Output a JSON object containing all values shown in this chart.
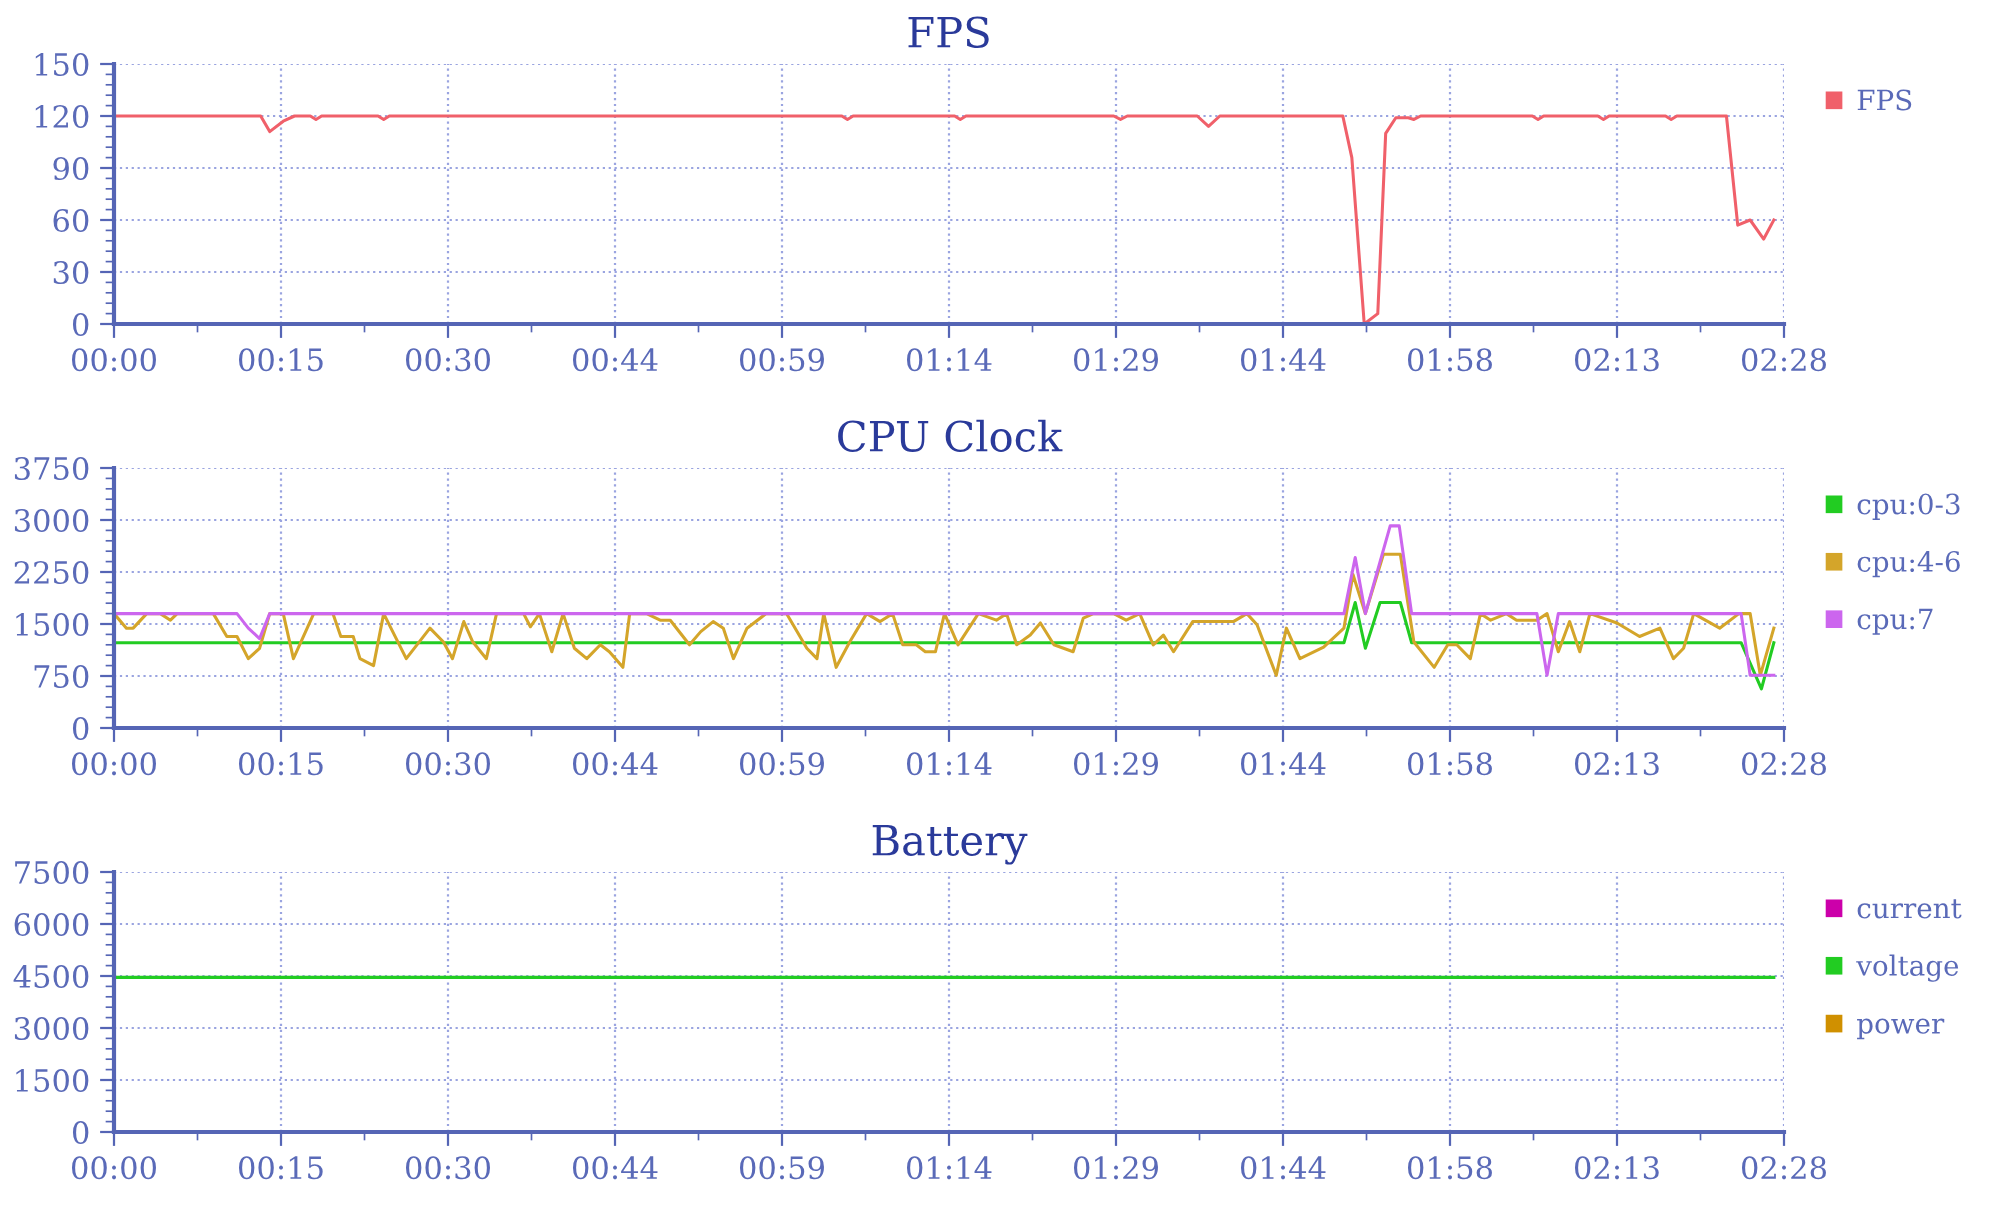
{
  "chart_data": [
    {
      "type": "line",
      "title": "FPS",
      "xlim": [
        0,
        148
      ],
      "xticks": [
        {
          "value": 0,
          "label": "00:00"
        },
        {
          "value": 14.8,
          "label": "00:15"
        },
        {
          "value": 29.6,
          "label": "00:30"
        },
        {
          "value": 44.4,
          "label": "00:44"
        },
        {
          "value": 59.2,
          "label": "00:59"
        },
        {
          "value": 74,
          "label": "01:14"
        },
        {
          "value": 88.8,
          "label": "01:29"
        },
        {
          "value": 103.6,
          "label": "01:44"
        },
        {
          "value": 118.4,
          "label": "01:58"
        },
        {
          "value": 133.2,
          "label": "02:13"
        },
        {
          "value": 148,
          "label": "02:28"
        }
      ],
      "ylim": [
        0,
        150
      ],
      "yticks": [
        0,
        30,
        60,
        90,
        120,
        150
      ],
      "grid": true,
      "legend": "right",
      "marker": "none",
      "line_style": "solid",
      "series": [
        {
          "name": "FPS",
          "color": "#f0606a",
          "x": [
            0,
            13,
            13.8,
            15,
            16,
            17.4,
            17.9,
            18.4,
            23.4,
            23.9,
            24.4,
            64.5,
            65,
            65.5,
            74.5,
            75,
            75.5,
            88.6,
            89.2,
            89.8,
            96,
            97,
            98,
            108.9,
            109.7,
            110.8,
            112,
            112.7,
            113.6,
            114.7,
            115.2,
            115.8,
            125.7,
            126.2,
            126.7,
            131.5,
            132,
            132.5,
            137.5,
            138,
            138.5,
            142.9,
            143.9,
            145,
            146.2,
            147.1
          ],
          "values": [
            120,
            120,
            111,
            117,
            120,
            120,
            118,
            120,
            120,
            118,
            120,
            120,
            118,
            120,
            120,
            118,
            120,
            120,
            118,
            120,
            120,
            114,
            120,
            120,
            96,
            0,
            6,
            110,
            119,
            119,
            118,
            120,
            120,
            118,
            120,
            120,
            118,
            120,
            120,
            118,
            120,
            120,
            57,
            60,
            49,
            60
          ]
        }
      ]
    },
    {
      "type": "line",
      "title": "CPU Clock",
      "xlim": [
        0,
        148
      ],
      "xticks": [
        {
          "value": 0,
          "label": "00:00"
        },
        {
          "value": 14.8,
          "label": "00:15"
        },
        {
          "value": 29.6,
          "label": "00:30"
        },
        {
          "value": 44.4,
          "label": "00:44"
        },
        {
          "value": 59.2,
          "label": "00:59"
        },
        {
          "value": 74,
          "label": "01:14"
        },
        {
          "value": 88.8,
          "label": "01:29"
        },
        {
          "value": 103.6,
          "label": "01:44"
        },
        {
          "value": 118.4,
          "label": "01:58"
        },
        {
          "value": 133.2,
          "label": "02:13"
        },
        {
          "value": 148,
          "label": "02:28"
        }
      ],
      "ylim": [
        0,
        3750
      ],
      "yticks": [
        0,
        750,
        1500,
        2250,
        3000,
        3750
      ],
      "grid": true,
      "legend": "right",
      "marker": "none",
      "line_style": "solid",
      "series": [
        {
          "name": "cpu:0-3",
          "color": "#22cc22",
          "x": [
            0,
            109,
            110,
            110.9,
            112.2,
            114,
            115,
            144.2,
            146,
            147.1
          ],
          "values": [
            1230,
            1230,
            1810,
            1150,
            1810,
            1810,
            1230,
            1230,
            565,
            1230
          ]
        },
        {
          "name": "cpu:4-6",
          "color": "#d4a52a",
          "x": [
            0,
            1.1,
            1.7,
            2.9,
            4.1,
            5,
            5.6,
            8.8,
            10,
            10.9,
            11.9,
            12.9,
            13.8,
            15,
            15.9,
            17.7,
            19.4,
            20.1,
            21.2,
            21.8,
            23,
            23.9,
            25.9,
            28,
            29.2,
            30,
            31,
            31.8,
            33,
            33.9,
            36.3,
            36.9,
            37.7,
            38.8,
            39.8,
            40.8,
            41.9,
            43.1,
            43.9,
            45.1,
            45.7,
            47.2,
            48.4,
            49.3,
            51,
            52,
            53.1,
            54,
            54.9,
            56.1,
            57.8,
            59.6,
            61.4,
            62.3,
            62.9,
            64,
            65.2,
            66.7,
            67.9,
            69,
            69.9,
            71.1,
            71.9,
            72.8,
            73.6,
            74.8,
            76.6,
            78.2,
            79.1,
            80,
            81.2,
            82.1,
            83.3,
            85,
            85.9,
            86.8,
            88.6,
            89.7,
            90.9,
            92.1,
            93,
            93.9,
            95.6,
            99.2,
            100.4,
            101.3,
            103,
            103.9,
            105.1,
            107.2,
            109,
            109.8,
            110.9,
            112.5,
            114,
            115.2,
            117,
            118.2,
            119,
            120.2,
            121.1,
            122,
            123.4,
            124.3,
            126.1,
            127,
            128,
            129,
            129.9,
            130.8,
            133.2,
            135.2,
            137,
            138.2,
            139.1,
            140,
            142.3,
            144,
            145,
            145.9,
            147.1
          ],
          "values": [
            1650,
            1440,
            1440,
            1650,
            1650,
            1555,
            1650,
            1650,
            1320,
            1320,
            1000,
            1150,
            1650,
            1650,
            1000,
            1650,
            1650,
            1320,
            1320,
            1000,
            900,
            1650,
            1000,
            1440,
            1240,
            1000,
            1535,
            1240,
            1000,
            1650,
            1650,
            1460,
            1650,
            1100,
            1650,
            1150,
            1000,
            1200,
            1100,
            875,
            1650,
            1650,
            1555,
            1555,
            1200,
            1390,
            1535,
            1440,
            1000,
            1440,
            1650,
            1650,
            1150,
            1000,
            1650,
            875,
            1240,
            1650,
            1535,
            1650,
            1200,
            1200,
            1100,
            1100,
            1650,
            1200,
            1650,
            1555,
            1650,
            1200,
            1340,
            1515,
            1200,
            1100,
            1585,
            1650,
            1650,
            1555,
            1650,
            1200,
            1340,
            1100,
            1535,
            1535,
            1650,
            1490,
            760,
            1440,
            1000,
            1165,
            1440,
            2215,
            1650,
            2505,
            2505,
            1240,
            875,
            1200,
            1200,
            1000,
            1650,
            1555,
            1650,
            1555,
            1555,
            1650,
            1100,
            1535,
            1100,
            1650,
            1515,
            1320,
            1440,
            1000,
            1150,
            1650,
            1440,
            1650,
            1650,
            760,
            1440
          ]
        },
        {
          "name": "cpu:7",
          "color": "#cc66ee",
          "x": [
            0,
            10.9,
            11.9,
            12.9,
            13.8,
            109,
            110,
            110.9,
            113.1,
            113.9,
            115,
            126.1,
            127,
            128,
            144.2,
            145,
            147.1
          ],
          "values": [
            1650,
            1650,
            1440,
            1290,
            1650,
            1650,
            2460,
            1650,
            2915,
            2915,
            1650,
            1650,
            760,
            1650,
            1650,
            760,
            760
          ]
        }
      ]
    },
    {
      "type": "line",
      "title": "Battery",
      "xlim": [
        0,
        148
      ],
      "xticks": [
        {
          "value": 0,
          "label": "00:00"
        },
        {
          "value": 14.8,
          "label": "00:15"
        },
        {
          "value": 29.6,
          "label": "00:30"
        },
        {
          "value": 44.4,
          "label": "00:44"
        },
        {
          "value": 59.2,
          "label": "00:59"
        },
        {
          "value": 74,
          "label": "01:14"
        },
        {
          "value": 88.8,
          "label": "01:29"
        },
        {
          "value": 103.6,
          "label": "01:44"
        },
        {
          "value": 118.4,
          "label": "01:58"
        },
        {
          "value": 133.2,
          "label": "02:13"
        },
        {
          "value": 148,
          "label": "02:28"
        }
      ],
      "ylim": [
        0,
        7500
      ],
      "yticks": [
        0,
        1500,
        3000,
        4500,
        6000,
        7500
      ],
      "grid": true,
      "legend": "right",
      "marker": "none",
      "line_style": "solid",
      "series": [
        {
          "name": "current",
          "color": "#cc00aa"
        },
        {
          "name": "voltage",
          "color": "#22cc22",
          "x": [
            0,
            147.1
          ],
          "values": [
            4460,
            4460
          ]
        },
        {
          "name": "power",
          "color": "#d09000"
        }
      ]
    }
  ]
}
